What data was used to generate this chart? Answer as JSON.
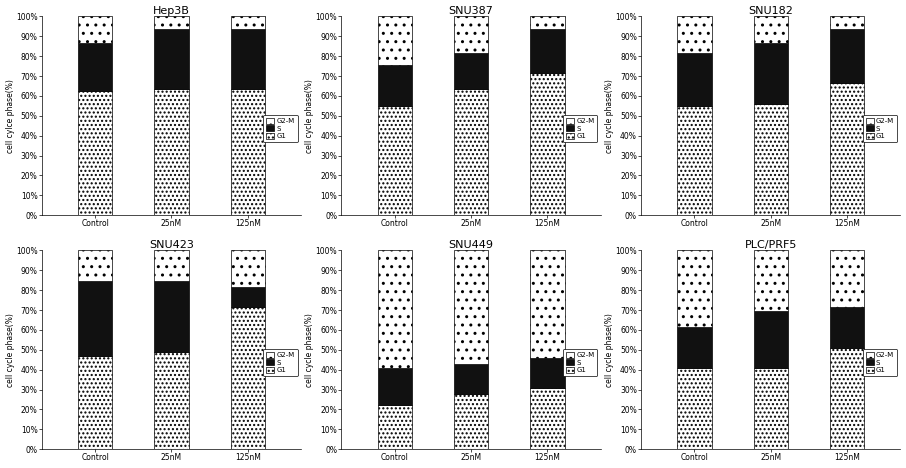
{
  "subplots": [
    {
      "title": "Hep3B",
      "ylabel": "cell cylce phase(%)",
      "categories": [
        "Control",
        "25nM",
        "125nM"
      ],
      "G1": [
        61,
        62,
        62
      ],
      "S": [
        24,
        30,
        30
      ],
      "G2M": [
        13,
        6,
        6
      ]
    },
    {
      "title": "SNU387",
      "ylabel": "cell cycle phase(%)",
      "categories": [
        "Control",
        "25nM",
        "125nM"
      ],
      "G1": [
        54,
        62,
        70
      ],
      "S": [
        20,
        18,
        22
      ],
      "G2M": [
        24,
        18,
        6
      ]
    },
    {
      "title": "SNU182",
      "ylabel": "cell cycle phase(%)",
      "categories": [
        "Control",
        "25nM",
        "125nM"
      ],
      "G1": [
        54,
        55,
        65
      ],
      "S": [
        26,
        30,
        27
      ],
      "G2M": [
        18,
        13,
        6
      ]
    },
    {
      "title": "SNU423",
      "ylabel": "cell cycle phase(%)",
      "categories": [
        "Control",
        "25nM",
        "125nM"
      ],
      "G1": [
        46,
        48,
        70
      ],
      "S": [
        37,
        35,
        10
      ],
      "G2M": [
        15,
        15,
        18
      ]
    },
    {
      "title": "SNU449",
      "ylabel": "cell cycle phase(%)",
      "categories": [
        "Control",
        "25nM",
        "125nM"
      ],
      "G1": [
        22,
        27,
        30
      ],
      "S": [
        18,
        15,
        15
      ],
      "G2M": [
        58,
        56,
        53
      ]
    },
    {
      "title": "PLC/PRF5",
      "ylabel": "cell cycle phase(%)",
      "categories": [
        "Control",
        "25nM",
        "125nM"
      ],
      "G1": [
        40,
        40,
        50
      ],
      "S": [
        20,
        28,
        20
      ],
      "G2M": [
        38,
        30,
        28
      ]
    }
  ],
  "yticks": [
    0,
    10,
    20,
    30,
    40,
    50,
    60,
    70,
    80,
    90,
    100
  ],
  "yticklabels": [
    "0%",
    "10%",
    "20%",
    "30%",
    "40%",
    "50%",
    "60%",
    "70%",
    "80%",
    "90%",
    "100%"
  ],
  "bar_width": 0.45,
  "S_color": "#111111",
  "G1_hatch": ".",
  "G2M_hatch": ".",
  "legend_panels": [
    0,
    1,
    2,
    3,
    4,
    5
  ]
}
